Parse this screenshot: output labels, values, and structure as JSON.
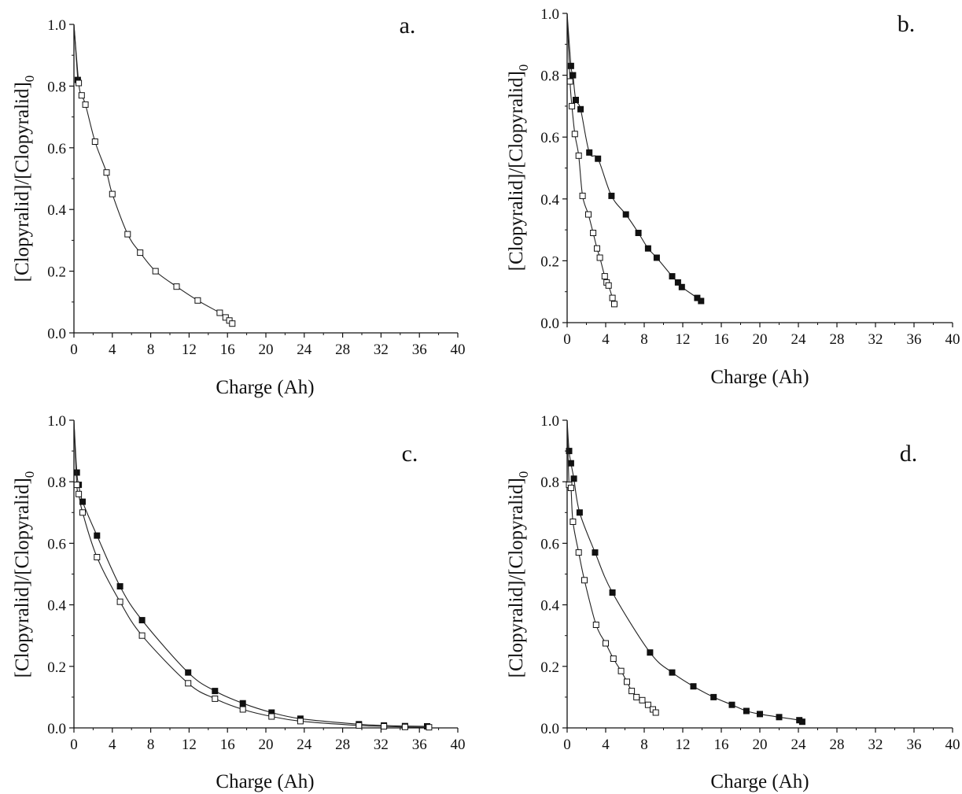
{
  "chart_data": [
    {
      "type": "scatter",
      "panel_label": "a.",
      "xlabel": "Charge (Ah)",
      "ylabel": "[Clopyralid]/[Clopyralid]",
      "ylabel_subscript": "0",
      "xlim": [
        0,
        40
      ],
      "ylim": [
        0,
        1.0
      ],
      "xticks": [
        "0",
        "4",
        "8",
        "12",
        "16",
        "20",
        "24",
        "28",
        "32",
        "36",
        "40"
      ],
      "yticks": [
        "0.0",
        "0.2",
        "0.4",
        "0.6",
        "0.8",
        "1.0"
      ],
      "grid": false,
      "series": [
        {
          "marker": "filled-square",
          "x": [
            0.0,
            0.4
          ],
          "y": [
            1.0,
            0.82
          ]
        },
        {
          "marker": "open-square",
          "x": [
            0.0,
            0.5,
            0.8,
            1.2,
            2.2,
            3.4,
            4.0,
            5.6,
            6.9,
            8.5,
            10.7,
            12.9,
            15.2,
            15.8,
            16.2,
            16.5
          ],
          "y": [
            1.0,
            0.81,
            0.77,
            0.74,
            0.62,
            0.52,
            0.45,
            0.32,
            0.26,
            0.2,
            0.15,
            0.105,
            0.065,
            0.05,
            0.04,
            0.03
          ]
        }
      ]
    },
    {
      "type": "scatter",
      "panel_label": "b.",
      "xlabel": "Charge (Ah)",
      "ylabel": "[Clopyralid]/[Clopyralid]",
      "ylabel_subscript": "0",
      "xlim": [
        0,
        40
      ],
      "ylim": [
        0,
        1.0
      ],
      "xticks": [
        "0",
        "4",
        "8",
        "12",
        "16",
        "20",
        "24",
        "28",
        "32",
        "36",
        "40"
      ],
      "yticks": [
        "0.0",
        "0.2",
        "0.4",
        "0.6",
        "0.8",
        "1.0"
      ],
      "grid": false,
      "series": [
        {
          "marker": "filled-square",
          "x": [
            0.0,
            0.4,
            0.6,
            0.9,
            1.4,
            2.3,
            3.2,
            4.6,
            6.1,
            7.4,
            8.4,
            9.3,
            10.9,
            11.5,
            11.9,
            13.5,
            13.9
          ],
          "y": [
            1.0,
            0.83,
            0.8,
            0.72,
            0.69,
            0.55,
            0.53,
            0.41,
            0.35,
            0.29,
            0.24,
            0.21,
            0.15,
            0.13,
            0.115,
            0.08,
            0.07
          ]
        },
        {
          "marker": "open-square",
          "x": [
            0.0,
            0.3,
            0.5,
            0.8,
            1.2,
            1.6,
            2.2,
            2.7,
            3.1,
            3.4,
            3.9,
            4.1,
            4.3,
            4.7,
            4.9
          ],
          "y": [
            1.0,
            0.78,
            0.7,
            0.61,
            0.54,
            0.41,
            0.35,
            0.29,
            0.24,
            0.21,
            0.15,
            0.13,
            0.12,
            0.08,
            0.06
          ]
        }
      ]
    },
    {
      "type": "scatter",
      "panel_label": "c.",
      "xlabel": "Charge (Ah)",
      "ylabel": "[Clopyralid]/[Clopyralid]",
      "ylabel_subscript": "0",
      "xlim": [
        0,
        40
      ],
      "ylim": [
        0,
        1.0
      ],
      "xticks": [
        "0",
        "4",
        "8",
        "12",
        "16",
        "20",
        "24",
        "28",
        "32",
        "36",
        "40"
      ],
      "yticks": [
        "0.0",
        "0.2",
        "0.4",
        "0.6",
        "0.8",
        "1.0"
      ],
      "grid": false,
      "series": [
        {
          "marker": "filled-square",
          "x": [
            0.0,
            0.3,
            0.5,
            0.9,
            2.4,
            4.8,
            7.1,
            11.9,
            14.7,
            17.6,
            20.6,
            23.6,
            29.7,
            32.3,
            34.5,
            36.8
          ],
          "y": [
            1.0,
            0.83,
            0.79,
            0.735,
            0.625,
            0.46,
            0.35,
            0.18,
            0.12,
            0.08,
            0.05,
            0.03,
            0.012,
            0.008,
            0.006,
            0.005
          ]
        },
        {
          "marker": "open-square",
          "x": [
            0.0,
            0.3,
            0.5,
            0.9,
            2.4,
            4.8,
            7.1,
            11.9,
            14.7,
            17.6,
            20.6,
            23.6,
            29.7,
            32.3,
            34.5,
            37.0
          ],
          "y": [
            1.0,
            0.79,
            0.76,
            0.7,
            0.555,
            0.41,
            0.3,
            0.145,
            0.095,
            0.06,
            0.037,
            0.022,
            0.008,
            0.005,
            0.003,
            0.002
          ]
        }
      ]
    },
    {
      "type": "scatter",
      "panel_label": "d.",
      "xlabel": "Charge (Ah)",
      "ylabel": "[Clopyralid]/[Clopyralid]",
      "ylabel_subscript": "0",
      "xlim": [
        0,
        40
      ],
      "ylim": [
        0,
        1.0
      ],
      "xticks": [
        "0",
        "4",
        "8",
        "12",
        "16",
        "20",
        "24",
        "28",
        "32",
        "36",
        "40"
      ],
      "yticks": [
        "0.0",
        "0.2",
        "0.4",
        "0.6",
        "0.8",
        "1.0"
      ],
      "grid": false,
      "series": [
        {
          "marker": "filled-square",
          "x": [
            0.0,
            0.2,
            0.4,
            0.7,
            1.3,
            2.9,
            4.7,
            8.6,
            10.9,
            13.1,
            15.2,
            17.1,
            18.6,
            20.0,
            22.0,
            24.1,
            24.4
          ],
          "y": [
            1.0,
            0.9,
            0.86,
            0.81,
            0.7,
            0.57,
            0.44,
            0.245,
            0.18,
            0.135,
            0.1,
            0.075,
            0.055,
            0.045,
            0.035,
            0.025,
            0.02
          ]
        },
        {
          "marker": "open-square",
          "x": [
            0.0,
            0.2,
            0.4,
            0.6,
            1.2,
            1.8,
            3.0,
            4.0,
            4.8,
            5.6,
            6.2,
            6.7,
            7.2,
            7.8,
            8.4,
            8.9,
            9.2
          ],
          "y": [
            1.0,
            0.79,
            0.78,
            0.67,
            0.57,
            0.48,
            0.335,
            0.275,
            0.225,
            0.185,
            0.15,
            0.12,
            0.1,
            0.09,
            0.075,
            0.06,
            0.05
          ]
        }
      ]
    }
  ]
}
